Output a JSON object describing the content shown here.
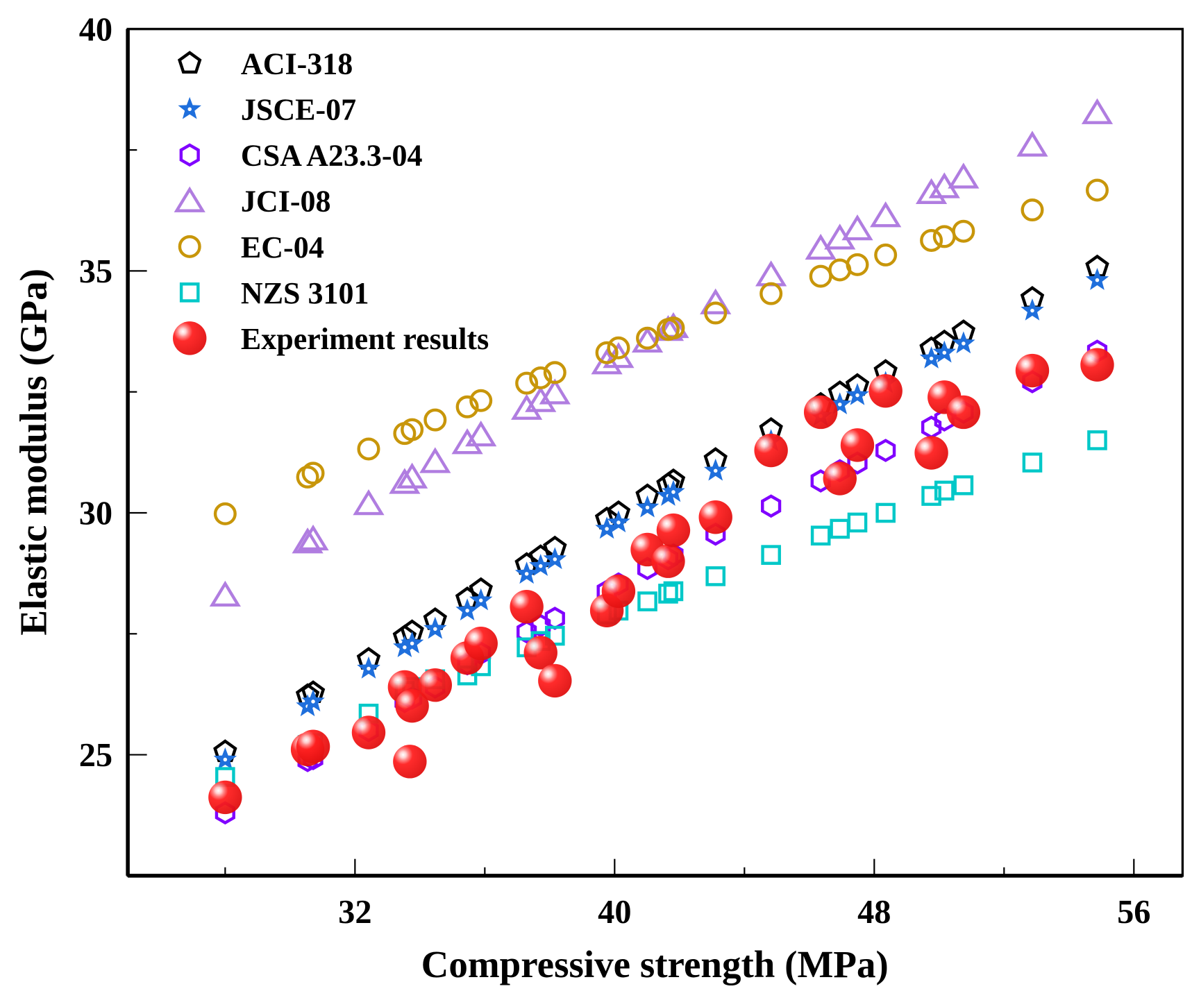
{
  "chart_data": {
    "type": "scatter",
    "title": "",
    "xlabel": "Compressive strength (MPa)",
    "ylabel": "Elastic modulus (GPa)",
    "xlim": [
      25,
      57.5
    ],
    "ylim": [
      22.5,
      40
    ],
    "xticks_major": [
      32,
      40,
      48,
      56
    ],
    "xticks_minor": [
      28,
      36,
      44,
      52
    ],
    "yticks_major": [
      25,
      30,
      35,
      40
    ],
    "yticks_minor": [
      27.5,
      32.5,
      37.5
    ],
    "grid": false,
    "legend_position": "top-left",
    "x": [
      28.0,
      30.54,
      30.71,
      32.42,
      33.53,
      33.76,
      34.47,
      35.46,
      35.88,
      37.29,
      37.72,
      38.16,
      39.76,
      40.12,
      41.01,
      41.65,
      41.81,
      43.11,
      44.82,
      46.35,
      46.94,
      47.48,
      48.35,
      49.76,
      50.16,
      50.75,
      52.87,
      54.87
    ],
    "series": [
      {
        "name": "ACI-318",
        "marker": "pentagon",
        "color": "#000000",
        "values": [
          25.06,
          26.22,
          26.28,
          26.97,
          27.43,
          27.54,
          27.79,
          28.22,
          28.41,
          28.93,
          29.09,
          29.27,
          29.87,
          30.0,
          30.35,
          30.58,
          30.66,
          31.1,
          31.72,
          32.24,
          32.48,
          32.63,
          32.92,
          33.39,
          33.53,
          33.74,
          34.43,
          35.08
        ]
      },
      {
        "name": "JSCE-07",
        "marker": "star",
        "color": "#1f6fdc",
        "values": [
          24.9,
          26.0,
          26.1,
          26.78,
          27.22,
          27.3,
          27.6,
          27.98,
          28.19,
          28.74,
          28.9,
          29.04,
          29.67,
          29.8,
          30.11,
          30.35,
          30.43,
          30.87,
          31.48,
          32.0,
          32.24,
          32.43,
          32.68,
          33.19,
          33.31,
          33.5,
          34.18,
          34.81
        ]
      },
      {
        "name": "CSA A23.3-04",
        "marker": "hexagon",
        "color": "#8000ff",
        "values": [
          23.8,
          24.88,
          24.92,
          25.5,
          26.1,
          26.17,
          26.4,
          26.88,
          27.1,
          27.54,
          27.67,
          27.82,
          28.38,
          28.53,
          28.85,
          29.05,
          29.13,
          29.56,
          30.14,
          30.66,
          30.87,
          31.03,
          31.29,
          31.77,
          31.92,
          32.08,
          32.71,
          33.34
        ]
      },
      {
        "name": "JCI-08",
        "marker": "triangle",
        "color": "#b07de0",
        "values": [
          28.3,
          29.4,
          29.46,
          30.19,
          30.63,
          30.74,
          31.06,
          31.45,
          31.61,
          32.16,
          32.32,
          32.48,
          33.1,
          33.23,
          33.55,
          33.79,
          33.85,
          34.34,
          34.92,
          35.47,
          35.68,
          35.87,
          36.14,
          36.62,
          36.74,
          36.94,
          37.6,
          38.27
        ]
      },
      {
        "name": "EC-04",
        "marker": "circle",
        "color": "#c8960a",
        "values": [
          29.98,
          30.74,
          30.82,
          31.32,
          31.64,
          31.72,
          31.92,
          32.19,
          32.32,
          32.68,
          32.79,
          32.9,
          33.31,
          33.41,
          33.61,
          33.79,
          33.82,
          34.13,
          34.53,
          34.89,
          35.02,
          35.13,
          35.33,
          35.63,
          35.71,
          35.82,
          36.26,
          36.67
        ]
      },
      {
        "name": "NZS 3101",
        "marker": "square",
        "color": "#00c8c8",
        "values": [
          24.54,
          25.2,
          25.24,
          25.85,
          26.32,
          26.4,
          26.56,
          26.64,
          26.83,
          27.22,
          27.35,
          27.46,
          27.9,
          27.98,
          28.17,
          28.33,
          28.38,
          28.69,
          29.13,
          29.53,
          29.67,
          29.8,
          30.0,
          30.35,
          30.46,
          30.57,
          31.04,
          31.5
        ]
      }
    ],
    "experiment": {
      "name": "Experiment results",
      "marker": "sphere",
      "color": "#ff1a1a",
      "x": [
        28.0,
        30.54,
        30.71,
        32.42,
        33.53,
        33.76,
        33.69,
        34.47,
        35.46,
        35.88,
        37.29,
        37.72,
        38.16,
        39.76,
        40.12,
        41.01,
        41.65,
        41.81,
        43.11,
        44.82,
        46.35,
        46.94,
        47.48,
        48.35,
        49.76,
        50.16,
        50.75,
        52.87,
        54.87
      ],
      "y": [
        24.12,
        25.11,
        25.17,
        25.46,
        26.4,
        26.01,
        24.86,
        26.44,
        27.0,
        27.3,
        28.06,
        27.11,
        26.53,
        27.98,
        28.38,
        29.24,
        29.0,
        29.64,
        29.91,
        31.29,
        32.08,
        30.71,
        31.4,
        32.52,
        31.24,
        32.39,
        32.08,
        32.94,
        33.06
      ]
    }
  }
}
